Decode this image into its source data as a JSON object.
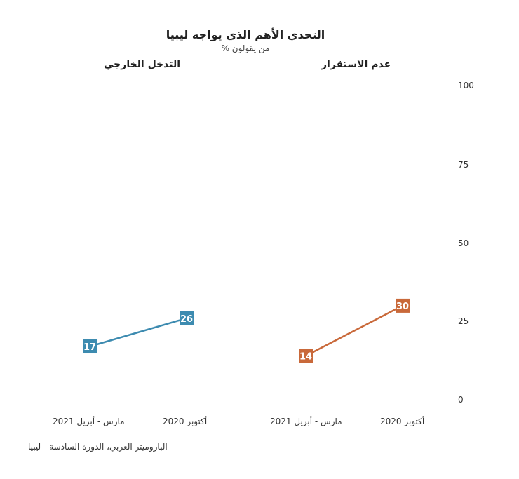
{
  "chart_data": {
    "type": "line",
    "title": "التحدي الأهم الذي يواجه ليبيا",
    "subtitle": "% من يقولون",
    "ylim": [
      0,
      100
    ],
    "yticks": [
      0,
      25,
      50,
      75,
      100
    ],
    "grid": false,
    "panels": [
      {
        "title": "التدخل الخارجي",
        "color": "#3d8bb0",
        "categories": [
          "مارس - أبريل 2021",
          "أكتوبر 2020"
        ],
        "values": [
          17,
          26
        ]
      },
      {
        "title": "عدم الاستقرار",
        "color": "#c9693a",
        "categories": [
          "مارس - أبريل 2021",
          "أكتوبر 2020"
        ],
        "values": [
          14,
          30
        ]
      }
    ]
  },
  "source": "الباروميتر العربي، الدورة السادسة - ليبيا"
}
